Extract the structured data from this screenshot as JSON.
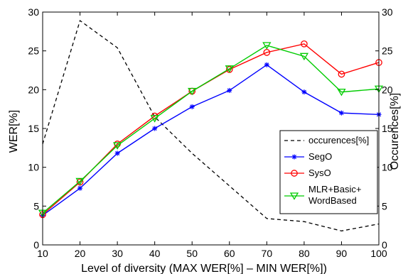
{
  "chart_data": {
    "type": "line",
    "title": "",
    "xlabel": "Level of diversity (MAX WER[%] – MIN WER[%])",
    "ylabel": "WER[%]",
    "y2label": "Occurences[%]",
    "xlim": [
      10,
      100
    ],
    "ylim": [
      0,
      30
    ],
    "y2lim": [
      0,
      30
    ],
    "xticks": [
      "10",
      "20",
      "30",
      "40",
      "50",
      "60",
      "70",
      "80",
      "90",
      "100"
    ],
    "yticks": [
      "0",
      "5",
      "10",
      "15",
      "20",
      "25",
      "30"
    ],
    "y2ticks": [
      "0",
      "5",
      "10",
      "15",
      "20",
      "25",
      "30"
    ],
    "grid": false,
    "legend_position": "right",
    "x": [
      10,
      20,
      30,
      40,
      50,
      60,
      70,
      80,
      90,
      100
    ],
    "series": [
      {
        "name": "occurences[%]",
        "axis": "right",
        "color": "#000000",
        "style": "dashed",
        "marker": "none",
        "values": [
          13.0,
          28.9,
          25.4,
          16.5,
          11.8,
          7.6,
          3.4,
          3.0,
          1.8,
          2.7
        ]
      },
      {
        "name": "SegO",
        "axis": "left",
        "color": "#0000ff",
        "style": "solid",
        "marker": "star",
        "values": [
          3.8,
          7.3,
          11.8,
          15.0,
          17.8,
          19.9,
          23.2,
          19.7,
          17.0,
          16.8
        ]
      },
      {
        "name": "SysO",
        "axis": "left",
        "color": "#ff0000",
        "style": "solid",
        "marker": "circle",
        "values": [
          3.9,
          8.1,
          13.0,
          16.6,
          19.8,
          22.6,
          24.8,
          25.9,
          22.0,
          23.5
        ]
      },
      {
        "name": "MLR+Basic+\nWordBased",
        "legend_lines": [
          "MLR+Basic+",
          "WordBased"
        ],
        "axis": "left",
        "color": "#00cc00",
        "style": "solid",
        "marker": "triangle-down",
        "values": [
          4.1,
          8.2,
          12.8,
          16.3,
          19.8,
          22.7,
          25.7,
          24.3,
          19.7,
          20.1
        ]
      }
    ]
  }
}
